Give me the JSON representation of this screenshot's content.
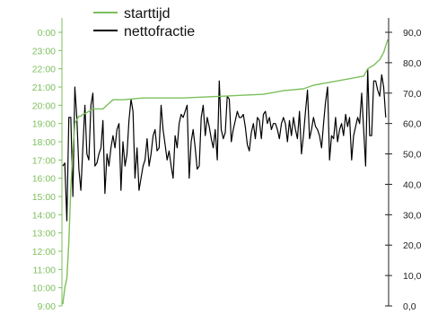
{
  "chart_data": {
    "type": "line",
    "title": "",
    "xlabel": "",
    "grid": false,
    "legend_position": "top-left",
    "left_axis": {
      "ylim_hours": [
        9,
        24
      ],
      "ticks": [
        "0:00",
        "23:00",
        "22:00",
        "21:00",
        "20:00",
        "19:00",
        "18:00",
        "17:00",
        "16:00",
        "15:00",
        "14:00",
        "13:00",
        "12:00",
        "11:00",
        "10:00",
        "9:00"
      ],
      "color": "#7cbf5c"
    },
    "right_axis": {
      "ylim": [
        0,
        90
      ],
      "ticks": [
        "90,0",
        "80,0",
        "70,0",
        "60,0",
        "50,0",
        "40,0",
        "30,0",
        "20,0",
        "10,0",
        "0,0"
      ],
      "color": "#222222"
    },
    "series": [
      {
        "name": "starttijd",
        "axis": "left",
        "color": "#7cbf5c",
        "x": [
          0,
          1,
          2,
          3,
          4,
          5,
          6,
          7,
          8,
          9,
          10,
          12,
          15,
          20,
          25,
          30,
          40,
          60,
          80,
          100,
          110,
          120,
          125,
          130,
          140,
          150,
          152,
          155,
          158,
          160,
          162
        ],
        "y": [
          9.1,
          10.0,
          10.5,
          12.5,
          15.5,
          17.5,
          19.0,
          19.2,
          19.4,
          19.4,
          19.5,
          19.6,
          19.8,
          19.8,
          20.3,
          20.3,
          20.4,
          20.4,
          20.5,
          20.6,
          20.8,
          20.9,
          21.1,
          21.2,
          21.4,
          21.6,
          22.0,
          22.2,
          22.5,
          22.9,
          23.6
        ]
      },
      {
        "name": "nettofractie",
        "axis": "right",
        "color": "#000000",
        "x": [
          0,
          1,
          2,
          3,
          4,
          5,
          6,
          7,
          8,
          9,
          10,
          11,
          12,
          13,
          14,
          15,
          16,
          17,
          18,
          19,
          20,
          21,
          22,
          23,
          24,
          25,
          26,
          27,
          28,
          29,
          30,
          31,
          32,
          33,
          34,
          35,
          36,
          37,
          38,
          39,
          40,
          41,
          42,
          43,
          44,
          45,
          46,
          47,
          48,
          49,
          50,
          51,
          52,
          53,
          54,
          55,
          56,
          57,
          58,
          59,
          60,
          61,
          62,
          63,
          64,
          65,
          66,
          67,
          68,
          69,
          70,
          71,
          72,
          73,
          74,
          75,
          76,
          77,
          78,
          79,
          80,
          81,
          82,
          83,
          84,
          85,
          86,
          87,
          88,
          89,
          90,
          91,
          92,
          93,
          94,
          95,
          96,
          97,
          98,
          99,
          100,
          101,
          102,
          103,
          104,
          105,
          106,
          107,
          108,
          109,
          110,
          111,
          112,
          113,
          114,
          115,
          116,
          117,
          118,
          119,
          120,
          121,
          122,
          123,
          124,
          125,
          126,
          127,
          128,
          129,
          130,
          131,
          132,
          133,
          134,
          135,
          136,
          137,
          138,
          139,
          140,
          141,
          142,
          143,
          144,
          145,
          146,
          147,
          148,
          149,
          150,
          151,
          152,
          153,
          154,
          155,
          156,
          157,
          158,
          159,
          160,
          161
        ],
        "y": [
          46,
          47,
          28,
          62,
          62,
          36,
          72,
          62,
          45,
          38,
          52,
          66,
          50,
          48,
          66,
          70,
          46,
          47,
          50,
          52,
          61,
          37,
          50,
          46,
          52,
          56,
          52,
          58,
          60,
          38,
          54,
          46,
          50,
          61,
          68,
          64,
          42,
          52,
          38,
          42,
          46,
          48,
          55,
          46,
          50,
          56,
          58,
          51,
          52,
          66,
          58,
          53,
          48,
          51,
          46,
          42,
          56,
          52,
          60,
          63,
          62,
          64,
          66,
          42,
          54,
          58,
          52,
          45,
          46,
          62,
          66,
          56,
          62,
          59,
          55,
          52,
          58,
          48,
          74,
          58,
          55,
          57,
          69,
          68,
          54,
          58,
          61,
          64,
          62,
          62,
          63,
          59,
          53,
          51,
          57,
          60,
          55,
          62,
          61,
          55,
          63,
          64,
          60,
          62,
          58,
          60,
          60,
          58,
          55,
          60,
          62,
          60,
          54,
          61,
          56,
          62,
          58,
          55,
          64,
          50,
          56,
          64,
          71,
          55,
          58,
          62,
          59,
          58,
          56,
          52,
          60,
          67,
          72,
          48,
          56,
          55,
          62,
          54,
          58,
          60,
          56,
          63,
          59,
          62,
          48,
          56,
          59,
          62,
          60,
          70,
          58,
          46,
          78,
          56,
          56,
          74,
          74,
          71,
          69,
          76,
          72,
          62
        ]
      }
    ]
  }
}
